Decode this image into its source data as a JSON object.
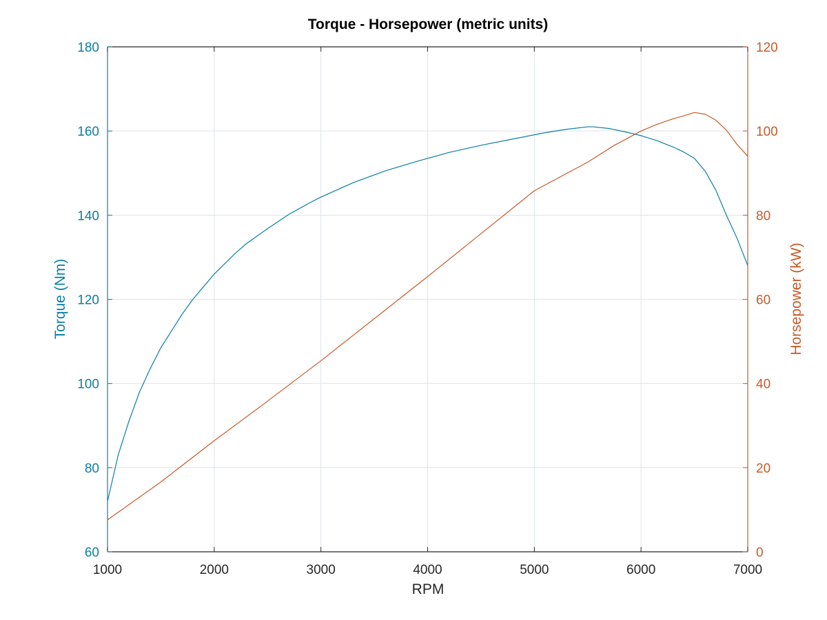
{
  "chart_data": {
    "type": "line",
    "title": "Torque - Horsepower (metric units)",
    "xlabel": "RPM",
    "ylabel_left": "Torque (Nm)",
    "ylabel_right": "Horsepower (kW)",
    "xlim": [
      1000,
      7000
    ],
    "ylim_left": [
      60,
      180
    ],
    "ylim_right": [
      0,
      120
    ],
    "x_ticks": [
      1000,
      2000,
      3000,
      4000,
      5000,
      6000,
      7000
    ],
    "y_left_ticks": [
      60,
      80,
      100,
      120,
      140,
      160,
      180
    ],
    "y_right_ticks": [
      0,
      20,
      40,
      60,
      80,
      100,
      120
    ],
    "grid": true,
    "colors": {
      "torque": "#0a7ea4",
      "horsepower": "#c65a28",
      "text": "#262626",
      "grid": "#dde3e8"
    },
    "series": [
      {
        "axis": "left",
        "color": "#0a7ea4",
        "x": [
          1000,
          1100,
          1200,
          1300,
          1400,
          1500,
          1600,
          1700,
          1800,
          1900,
          2000,
          2100,
          2200,
          2300,
          2400,
          2500,
          2600,
          2700,
          2800,
          2900,
          3000,
          3300,
          3600,
          3900,
          4200,
          4500,
          4800,
          5100,
          5300,
          5500,
          5550,
          5700,
          5850,
          6000,
          6150,
          6300,
          6400,
          6500,
          6600,
          6700,
          6800,
          6900,
          7000
        ],
        "values": [
          72,
          83,
          91,
          98,
          103.5,
          108.5,
          112.5,
          116.5,
          120,
          123,
          126,
          128.5,
          131,
          133.2,
          135,
          136.8,
          138.5,
          140.2,
          141.6,
          143,
          144.3,
          147.7,
          150.5,
          152.8,
          154.9,
          156.6,
          158.1,
          159.6,
          160.4,
          161,
          161,
          160.6,
          159.8,
          158.9,
          157.7,
          156.2,
          155,
          153.5,
          150.5,
          146,
          140,
          134.5,
          128
        ]
      },
      {
        "axis": "right",
        "color": "#c65a28",
        "x": [
          1000,
          1500,
          2000,
          2500,
          3000,
          3500,
          4000,
          4500,
          5000,
          5500,
          5750,
          6000,
          6150,
          6300,
          6400,
          6500,
          6600,
          6700,
          6800,
          6900,
          7000
        ],
        "values": [
          7.6,
          16.6,
          26.4,
          35.8,
          45.4,
          55.4,
          65.4,
          75.6,
          85.8,
          92.6,
          96.6,
          100,
          101.6,
          102.9,
          103.6,
          104.4,
          104,
          102.6,
          100.2,
          96.8,
          94
        ]
      }
    ]
  }
}
